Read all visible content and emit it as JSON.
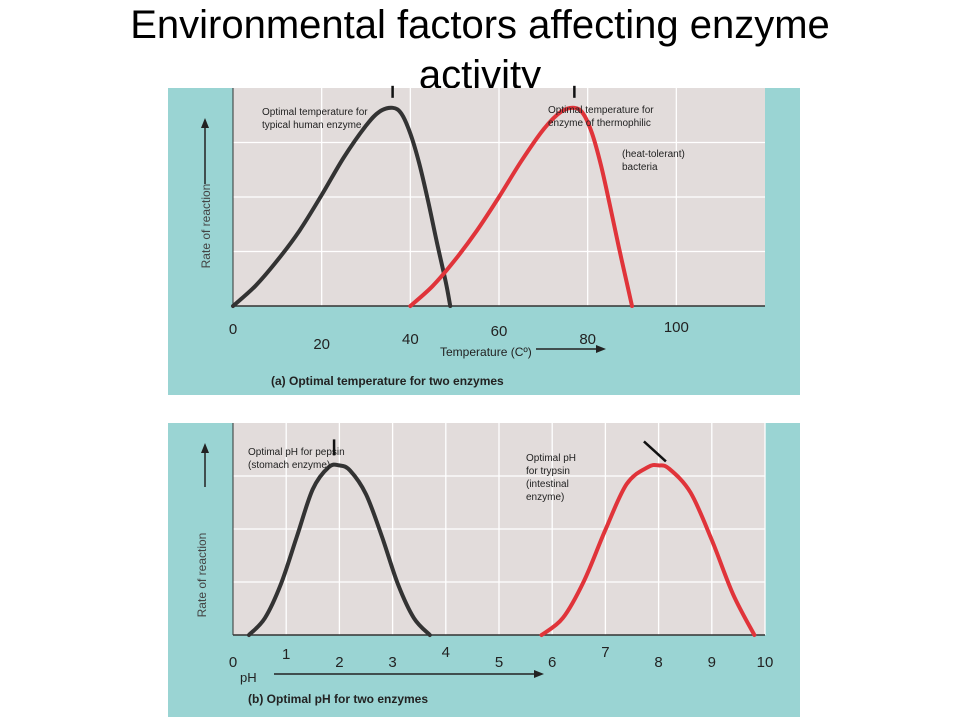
{
  "slide": {
    "title_line1": "Environmental factors affecting enzyme",
    "title_line2": "activity"
  },
  "colors": {
    "panel": "#9ad4d3",
    "plot": "#e2dcdb",
    "grid": "#ffffff",
    "human": "#333333",
    "thermo": "#e0343a",
    "axis": "#333333"
  },
  "chart_data": [
    {
      "type": "line",
      "caption": "(a) Optimal temperature for two enzymes",
      "xlabel": "Temperature (Cº)",
      "ylabel": "Rate of reaction",
      "xlim": [
        0,
        120
      ],
      "ylim": [
        0,
        1.1
      ],
      "ticks": [
        {
          "value": 0,
          "label": "0"
        },
        {
          "value": 20,
          "label": "20"
        },
        {
          "value": 40,
          "label": "40"
        },
        {
          "value": 60,
          "label": "60"
        },
        {
          "value": 80,
          "label": "80"
        },
        {
          "value": 100,
          "label": "100"
        }
      ],
      "series": [
        {
          "color": "#333333",
          "x": [
            0,
            5,
            10,
            15,
            20,
            25,
            30,
            33,
            36,
            38,
            40,
            42,
            44,
            46,
            48,
            49
          ],
          "y": [
            0,
            0.1,
            0.23,
            0.38,
            0.56,
            0.75,
            0.91,
            0.98,
            1.0,
            0.97,
            0.87,
            0.72,
            0.53,
            0.32,
            0.12,
            0
          ],
          "annotation": {
            "lines": [
              "Optimal temperature  for",
              "typical human enzyme"
            ],
            "peak_x": 36
          }
        },
        {
          "color": "#e0343a",
          "x": [
            40,
            45,
            50,
            55,
            60,
            65,
            70,
            74,
            77,
            79,
            81,
            83,
            85,
            87,
            89,
            90
          ],
          "y": [
            0,
            0.1,
            0.23,
            0.38,
            0.55,
            0.73,
            0.89,
            0.98,
            1.0,
            0.97,
            0.87,
            0.71,
            0.51,
            0.3,
            0.1,
            0
          ],
          "annotation": {
            "lines": [
              "Optimal temperature  for",
              "enzyme  of thermophilic"
            ],
            "extra_lines": [
              "(heat-tolerant)",
              "bacteria"
            ],
            "peak_x": 77
          }
        }
      ]
    },
    {
      "type": "line",
      "caption": "(b) Optimal pH for two enzymes",
      "xlabel": "pH",
      "ylabel": "Rate of reaction",
      "xlim": [
        0,
        10
      ],
      "ylim": [
        0,
        1.25
      ],
      "ticks": [
        {
          "value": 0,
          "label": "0"
        },
        {
          "value": 1,
          "label": "1"
        },
        {
          "value": 2,
          "label": "2"
        },
        {
          "value": 3,
          "label": "3"
        },
        {
          "value": 4,
          "label": "4"
        },
        {
          "value": 5,
          "label": "5"
        },
        {
          "value": 6,
          "label": "6"
        },
        {
          "value": 7,
          "label": "7"
        },
        {
          "value": 8,
          "label": "8"
        },
        {
          "value": 9,
          "label": "9"
        },
        {
          "value": 10,
          "label": "10"
        }
      ],
      "series": [
        {
          "color": "#333333",
          "x": [
            0.3,
            0.6,
            0.9,
            1.2,
            1.5,
            1.8,
            2.0,
            2.2,
            2.5,
            2.8,
            3.1,
            3.4,
            3.7
          ],
          "y": [
            0,
            0.1,
            0.3,
            0.58,
            0.86,
            0.99,
            1.0,
            0.97,
            0.83,
            0.58,
            0.3,
            0.1,
            0
          ],
          "annotation": {
            "lines": [
              "Optimal pH for pepsin",
              "(stomach enzyme)"
            ],
            "peak_x": 1.9
          }
        },
        {
          "color": "#e0343a",
          "x": [
            5.8,
            6.2,
            6.6,
            7.0,
            7.4,
            7.8,
            8.0,
            8.2,
            8.6,
            9.0,
            9.4,
            9.8
          ],
          "y": [
            0,
            0.1,
            0.32,
            0.62,
            0.89,
            0.99,
            1.0,
            0.98,
            0.84,
            0.56,
            0.24,
            0
          ],
          "annotation": {
            "lines": [
              "Optimal pH",
              "for trypsin",
              "(intestinal",
              "enzyme)"
            ],
            "peak_x": 8.1
          }
        }
      ]
    }
  ]
}
